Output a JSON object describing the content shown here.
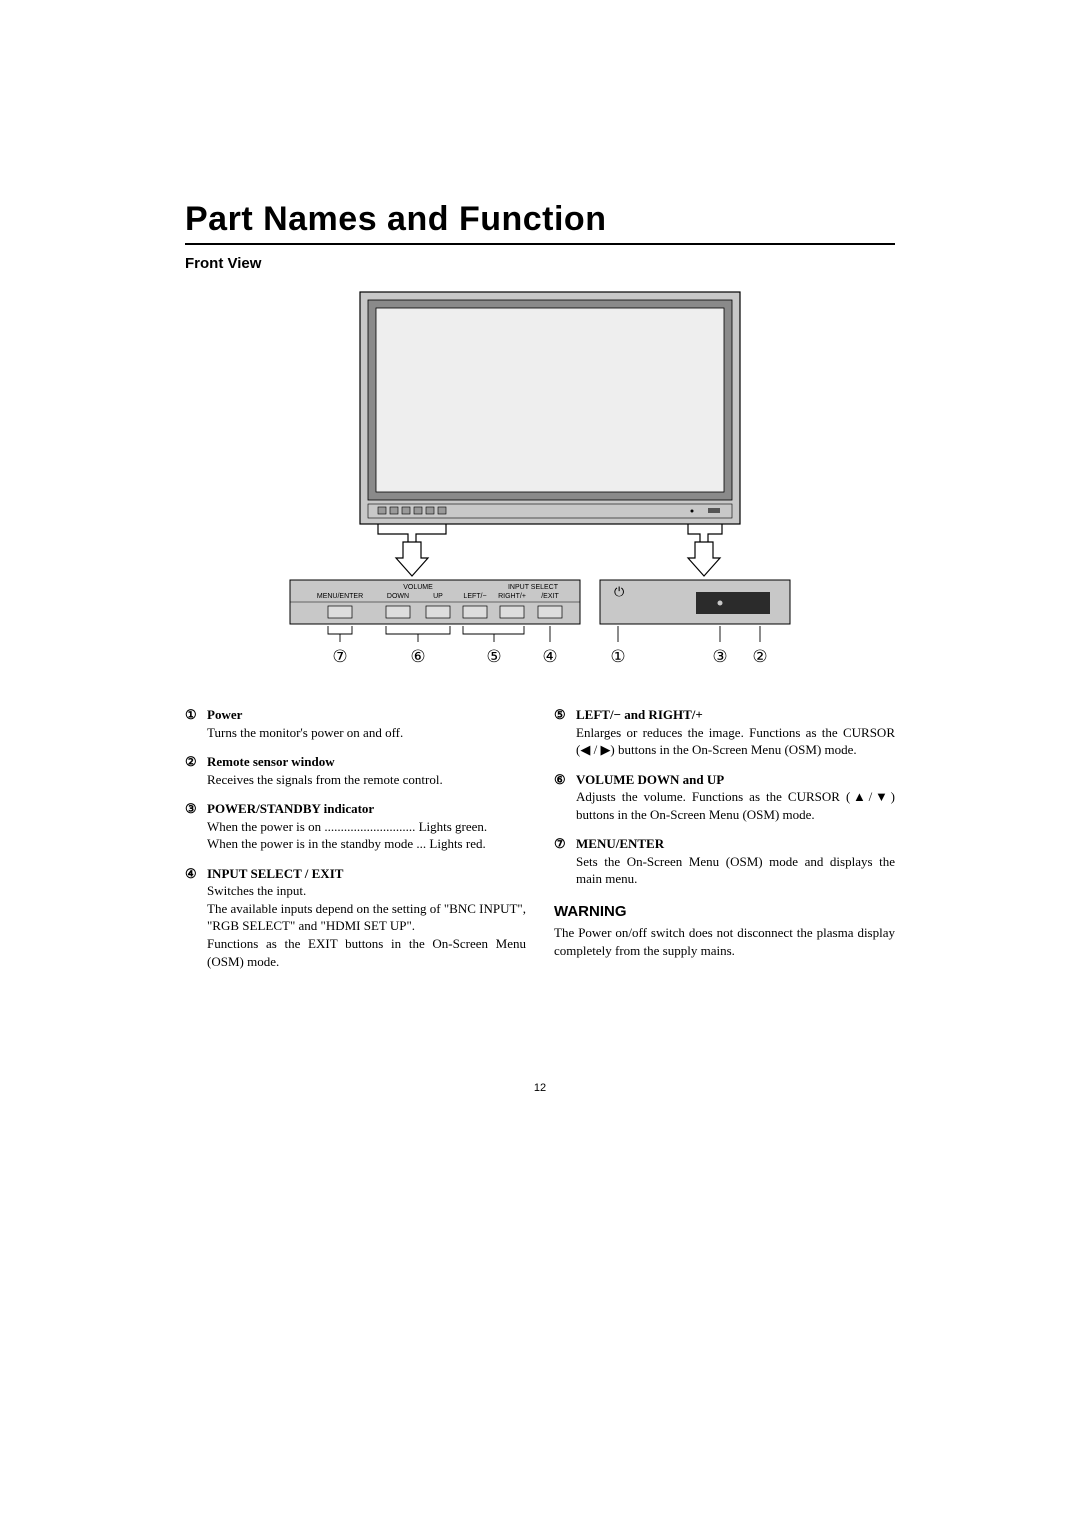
{
  "title": "Part Names and Function",
  "subtitle": "Front View",
  "pageNumber": "12",
  "diagram": {
    "panelLabels": [
      "MENU/ENTER",
      "DOWN",
      "UP",
      "LEFT/−",
      "RIGHT/+",
      "/EXIT"
    ],
    "panelGroupLabels": {
      "volume": "VOLUME",
      "input": "INPUT SELECT"
    },
    "callouts": [
      "⑦",
      "⑥",
      "⑤",
      "④",
      "①",
      "③",
      "②"
    ],
    "powerGlyph": "⏻",
    "colors": {
      "monitorOuter": "#c8c8c8",
      "monitorBezel": "#8a8a8a",
      "monitorScreen": "#eeeeee",
      "panelBg": "#c8c8c8",
      "panelDark": "#2b2b2b",
      "stroke": "#000000"
    }
  },
  "leftItems": [
    {
      "num": "①",
      "title": "Power",
      "body": "Turns the monitor's power on and off."
    },
    {
      "num": "②",
      "title": "Remote sensor window",
      "body": "Receives the signals from the remote control."
    },
    {
      "num": "③",
      "title": "POWER/STANDBY indicator",
      "body": "When the power is on ............................ Lights green.\nWhen the power is in the standby mode ... Lights red."
    },
    {
      "num": "④",
      "title": "INPUT SELECT / EXIT",
      "body": "Switches the input.\nThe available inputs depend on the setting of \"BNC INPUT\", \"RGB SELECT\" and \"HDMI SET UP\".\nFunctions as the EXIT buttons in the On-Screen Menu (OSM) mode."
    }
  ],
  "rightItems": [
    {
      "num": "⑤",
      "title": "LEFT/− and RIGHT/+",
      "body": "Enlarges or reduces the image. Functions as the CURSOR (◀ / ▶) buttons in the On-Screen Menu (OSM) mode."
    },
    {
      "num": "⑥",
      "title": "VOLUME DOWN and UP",
      "body": "Adjusts the volume. Functions as the CURSOR (▲/▼) buttons in the On-Screen Menu (OSM) mode."
    },
    {
      "num": "⑦",
      "title": "MENU/ENTER",
      "body": "Sets the On-Screen Menu (OSM) mode and displays the main menu."
    }
  ],
  "warning": {
    "heading": "WARNING",
    "body": "The Power on/off switch does not disconnect the plasma display completely from the supply mains."
  }
}
